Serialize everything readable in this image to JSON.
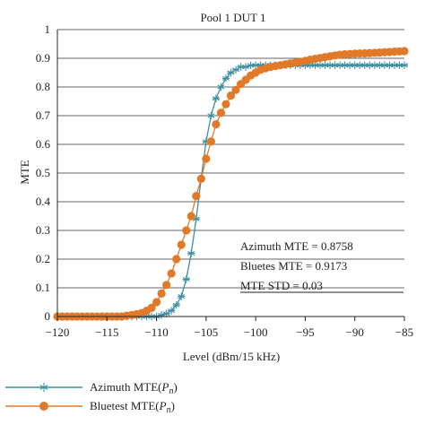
{
  "chart_data": {
    "type": "line",
    "title": "Pool 1 DUT 1",
    "xlabel": "Level (dBm/15 kHz)",
    "ylabel": "MTE",
    "xlim": [
      -120,
      -85
    ],
    "ylim": [
      0,
      1
    ],
    "xticks": [
      "−120",
      "−115",
      "−110",
      "−105",
      "−100",
      "−95",
      "−90",
      "−85"
    ],
    "yticks": [
      "0",
      "0.1",
      "0.2",
      "0.3",
      "0.4",
      "0.5",
      "0.6",
      "0.7",
      "0.8",
      "0.9",
      "1"
    ],
    "grid": "horizontal",
    "legend_position": "bottom",
    "series": [
      {
        "name": "Azimuth MTE(Pn)",
        "legend_prefix": "Azimuth MTE(",
        "legend_var": "P",
        "legend_sub": "n",
        "legend_suffix": ")",
        "color": "#3f8fa0",
        "marker": "asterisk",
        "x": [
          -120,
          -119.5,
          -119,
          -118.5,
          -118,
          -117.5,
          -117,
          -116.5,
          -116,
          -115.5,
          -115,
          -114.5,
          -114,
          -113.5,
          -113,
          -112.5,
          -112,
          -111.5,
          -111,
          -110.5,
          -110,
          -109.5,
          -109,
          -108.5,
          -108,
          -107.5,
          -107,
          -106.5,
          -106,
          -105.5,
          -105,
          -104.5,
          -104,
          -103.5,
          -103,
          -102.5,
          -102,
          -101.5,
          -101,
          -100.5,
          -100,
          -99.5,
          -99,
          -98.5,
          -98,
          -97.5,
          -97,
          -96.5,
          -96,
          -95.5,
          -95,
          -94.5,
          -94,
          -93.5,
          -93,
          -92.5,
          -92,
          -91.5,
          -91,
          -90.5,
          -90,
          -89.5,
          -89,
          -88.5,
          -88,
          -87.5,
          -87,
          -86.5,
          -86,
          -85.5,
          -85
        ],
        "y": [
          0,
          0,
          0,
          0,
          0,
          0,
          0,
          0,
          0,
          0,
          0,
          0,
          0,
          0,
          0,
          0,
          0,
          0,
          0,
          0,
          0,
          0.005,
          0.01,
          0.02,
          0.04,
          0.07,
          0.13,
          0.22,
          0.34,
          0.48,
          0.61,
          0.7,
          0.76,
          0.8,
          0.83,
          0.85,
          0.86,
          0.87,
          0.87,
          0.875,
          0.8758,
          0.8758,
          0.8758,
          0.8758,
          0.8758,
          0.8758,
          0.8758,
          0.8758,
          0.8758,
          0.8758,
          0.8758,
          0.8758,
          0.8758,
          0.8758,
          0.8758,
          0.8758,
          0.8758,
          0.8758,
          0.8758,
          0.8758,
          0.8758,
          0.8758,
          0.8758,
          0.8758,
          0.8758,
          0.8758,
          0.8758,
          0.8758,
          0.8758,
          0.8758,
          0.8758
        ]
      },
      {
        "name": "Bluetest MTE(Pn)",
        "legend_prefix": "Bluetest MTE(",
        "legend_var": "P",
        "legend_sub": "n",
        "legend_suffix": ")",
        "color": "#e07a28",
        "marker": "circle",
        "x": [
          -120,
          -119.5,
          -119,
          -118.5,
          -118,
          -117.5,
          -117,
          -116.5,
          -116,
          -115.5,
          -115,
          -114.5,
          -114,
          -113.5,
          -113,
          -112.5,
          -112,
          -111.5,
          -111,
          -110.5,
          -110,
          -109.5,
          -109,
          -108.5,
          -108,
          -107.5,
          -107,
          -106.5,
          -106,
          -105.5,
          -105,
          -104.5,
          -104,
          -103.5,
          -103,
          -102.5,
          -102,
          -101.5,
          -101,
          -100.5,
          -100,
          -99.5,
          -99,
          -98.5,
          -98,
          -97.5,
          -97,
          -96.5,
          -96,
          -95.5,
          -95,
          -94.5,
          -94,
          -93.5,
          -93,
          -92.5,
          -92,
          -91.5,
          -91,
          -90.5,
          -90,
          -89.5,
          -89,
          -88.5,
          -88,
          -87.5,
          -87,
          -86.5,
          -86,
          -85.5,
          -85
        ],
        "y": [
          0,
          0,
          0,
          0,
          0,
          0,
          0,
          0,
          0,
          0,
          0,
          0,
          0,
          0,
          0.003,
          0.005,
          0.008,
          0.012,
          0.02,
          0.03,
          0.05,
          0.08,
          0.11,
          0.15,
          0.2,
          0.25,
          0.3,
          0.35,
          0.42,
          0.48,
          0.55,
          0.61,
          0.67,
          0.71,
          0.74,
          0.77,
          0.79,
          0.81,
          0.825,
          0.84,
          0.85,
          0.86,
          0.865,
          0.87,
          0.873,
          0.876,
          0.879,
          0.882,
          0.885,
          0.888,
          0.891,
          0.895,
          0.898,
          0.901,
          0.904,
          0.907,
          0.91,
          0.912,
          0.914,
          0.915,
          0.916,
          0.917,
          0.9173,
          0.918,
          0.919,
          0.92,
          0.921,
          0.922,
          0.923,
          0.924,
          0.925
        ]
      }
    ],
    "annotations": [
      "Azimuth MTE = 0.8758",
      "Bluetes MTE = 0.9173",
      "MTE STD = 0.03"
    ]
  }
}
